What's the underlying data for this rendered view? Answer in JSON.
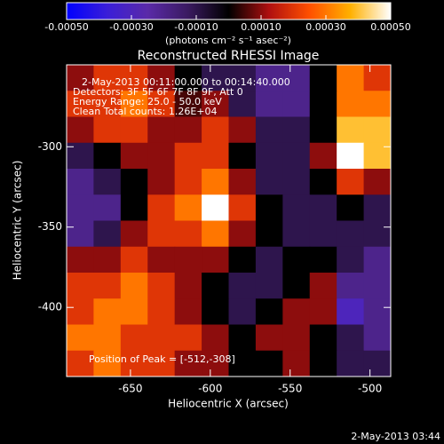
{
  "chart_data": {
    "type": "heatmap",
    "title": "Reconstructed RHESSI Image",
    "xlabel": "Heliocentric X (arcsec)",
    "ylabel": "Heliocentric Y (arcsec)",
    "xlim": [
      -690,
      -487
    ],
    "ylim": [
      -443,
      -249
    ],
    "xticks": [
      -650,
      -600,
      -550,
      -500
    ],
    "yticks": [
      -300,
      -350,
      -400
    ],
    "annotations": [
      "2-May-2013 00:11:00.000 to 00:14:40.000",
      "Detectors: 3F 5F 6F 7F 8F 9F, Att 0",
      "Energy Range: 25.0 - 50.0 keV",
      "Clean    Total counts: 1.26E+04"
    ],
    "peak_label": "Position of Peak = [-512,-308]",
    "timestamp": "2-May-2013 03:44",
    "colorbar": {
      "label": "(photons cm⁻² s⁻¹ asec⁻²)",
      "lim": [
        -0.0005,
        0.0005
      ],
      "ticks": [
        {
          "value": -0.0005,
          "label": "-0.00050"
        },
        {
          "value": -0.0003,
          "label": "-0.00030"
        },
        {
          "value": -0.0001,
          "label": "-0.00010"
        },
        {
          "value": 0.0001,
          "label": "0.00010"
        },
        {
          "value": 0.0003,
          "label": "0.00030"
        },
        {
          "value": 0.0005,
          "label": "0.00050"
        }
      ],
      "colormap": [
        "#0000ff",
        "#3a1ed8",
        "#5a2aa8",
        "#3a1a60",
        "#000000",
        "#b01010",
        "#ff5000",
        "#ffb000",
        "#ffffff"
      ]
    },
    "values": [
      [
        0.0001,
        0.0002,
        0.0002,
        0.0001,
        0,
        -0.0001,
        -0.0001,
        -0.0002,
        -0.0002,
        0,
        0.0003,
        0.0002
      ],
      [
        0.0002,
        0.0002,
        0.0003,
        0.0002,
        5e-05,
        0.0001,
        -0.0001,
        -0.0002,
        -0.0002,
        0,
        0.0003,
        0.0003
      ],
      [
        0.0001,
        0.0002,
        0.0002,
        0.0001,
        0.0001,
        0.0002,
        0.0001,
        -0.0001,
        -0.0001,
        0,
        0.0004,
        0.0004
      ],
      [
        -0.0001,
        0,
        0.0001,
        0.0001,
        0.0002,
        0.0002,
        0,
        -0.0001,
        -0.0001,
        0.0001,
        0.0005,
        0.0004
      ],
      [
        -0.0002,
        -0.0001,
        0,
        0.0001,
        0.0002,
        0.0003,
        0.0001,
        -0.0001,
        -0.0001,
        0,
        0.0002,
        0.0001
      ],
      [
        -0.0002,
        -0.0002,
        0,
        0.0002,
        0.0003,
        0.0005,
        0.0002,
        0,
        -0.0001,
        -0.0001,
        0,
        -0.0001
      ],
      [
        -0.0002,
        -0.0001,
        0.0001,
        0.0002,
        0.0002,
        0.0003,
        0.0001,
        0,
        -0.0001,
        -0.0001,
        -0.0001,
        -0.0001
      ],
      [
        0.0001,
        0.0001,
        0.0002,
        0.0001,
        0.0001,
        0.0001,
        0,
        -0.0001,
        0,
        0,
        -0.0001,
        -0.0002
      ],
      [
        0.0002,
        0.0002,
        0.0003,
        0.0002,
        0.0001,
        0,
        -0.0001,
        -0.0001,
        0,
        0.0001,
        -0.0002,
        -0.0002
      ],
      [
        0.0002,
        0.0003,
        0.0003,
        0.0002,
        0.0001,
        0,
        -0.0001,
        0,
        0.0001,
        0.0001,
        -0.0003,
        -0.0002
      ],
      [
        0.0003,
        0.0003,
        0.0002,
        0.0002,
        0.0002,
        0.0001,
        0,
        0.0001,
        0.0001,
        0,
        -0.0001,
        -0.0002
      ],
      [
        0.0002,
        0.0003,
        0.0002,
        0.0002,
        0.0001,
        0.0001,
        0,
        0,
        0.0001,
        0,
        -0.0001,
        -0.0001
      ]
    ]
  }
}
